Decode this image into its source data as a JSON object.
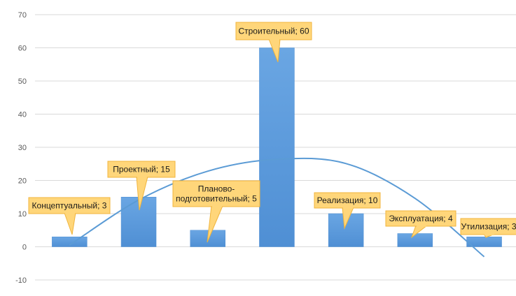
{
  "chart_data": {
    "type": "bar",
    "categories": [
      "Концептуальный",
      "Проектный",
      "Планово-подготовительный",
      "Строительный",
      "Реализация",
      "Эксплуатация",
      "Утилизация"
    ],
    "values": [
      3,
      15,
      5,
      60,
      10,
      4,
      3
    ],
    "data_labels": [
      [
        "Концептуальный; 3"
      ],
      [
        "Проектный; 15"
      ],
      [
        "Планово-",
        "подготовительный; 5"
      ],
      [
        "Строительный; 60"
      ],
      [
        "Реализация; 10"
      ],
      [
        "Эксплуатация; 4"
      ],
      [
        "Утилизация; 3"
      ]
    ],
    "ylim": [
      -10,
      70
    ],
    "yticks": [
      "70",
      "60",
      "50",
      "40",
      "30",
      "20",
      "10",
      "0",
      "-10"
    ],
    "grid": true,
    "legend": "none",
    "trendline": {
      "type": "polynomial",
      "points": [
        [
          0,
          0.5
        ],
        [
          1,
          14.1
        ],
        [
          2,
          22.8
        ],
        [
          3,
          26.4
        ],
        [
          4,
          25.1
        ],
        [
          5,
          14.6
        ],
        [
          6,
          -3
        ]
      ]
    },
    "colors": {
      "bar": "#4f8fd4",
      "bar_light": "#6aa6e3",
      "trendline": "#5b9bd5",
      "callout_fill": "#ffd67a",
      "callout_stroke": "#f0b43c",
      "grid": "#d9d9d9",
      "tick_text": "#595959"
    }
  }
}
